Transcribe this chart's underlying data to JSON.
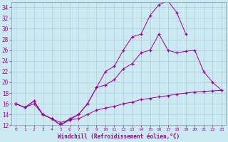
{
  "xlabel": "Windchill (Refroidissement éolien,°C)",
  "background_color": "#cce8f0",
  "line_color": "#990099",
  "grid_color": "#aaccdd",
  "xlim": [
    -0.5,
    23.5
  ],
  "ylim": [
    12,
    35
  ],
  "xticks": [
    0,
    1,
    2,
    3,
    4,
    5,
    6,
    7,
    8,
    9,
    10,
    11,
    12,
    13,
    14,
    15,
    16,
    17,
    18,
    19,
    20,
    21,
    22,
    23
  ],
  "yticks": [
    12,
    14,
    16,
    18,
    20,
    22,
    24,
    26,
    28,
    30,
    32,
    34
  ],
  "line1_x": [
    0,
    1,
    2,
    3,
    4,
    5,
    6,
    7,
    8,
    9,
    10,
    11,
    12,
    13,
    14,
    15,
    16,
    17,
    18,
    19,
    20,
    21,
    22,
    23
  ],
  "line1_y": [
    16,
    15.3,
    16.5,
    14.0,
    13.2,
    12.0,
    13.2,
    14.0,
    16.0,
    19.0,
    22.0,
    23.0,
    26.0,
    28.5,
    29.0,
    32.5,
    34.5,
    35.2,
    33.0,
    29.0,
    null,
    null,
    null,
    null
  ],
  "line2_x": [
    0,
    1,
    2,
    3,
    4,
    5,
    6,
    7,
    8,
    9,
    10,
    11,
    12,
    13,
    14,
    15,
    16,
    17,
    18,
    19,
    20,
    21,
    22,
    23
  ],
  "line2_y": [
    16,
    15.3,
    16.5,
    14.0,
    13.2,
    12.0,
    13.0,
    14.0,
    16.0,
    19.0,
    19.5,
    20.5,
    22.5,
    23.5,
    25.5,
    26.0,
    29.0,
    26.0,
    25.5,
    25.8,
    26.0,
    22.0,
    20.0,
    18.5
  ],
  "line3_x": [
    0,
    1,
    2,
    3,
    4,
    5,
    6,
    7,
    8,
    9,
    10,
    11,
    12,
    13,
    14,
    15,
    16,
    17,
    18,
    19,
    20,
    21,
    22,
    23
  ],
  "line3_y": [
    16,
    15.3,
    16.0,
    14.0,
    13.2,
    12.5,
    13.0,
    13.2,
    14.0,
    14.8,
    15.2,
    15.5,
    16.0,
    16.3,
    16.8,
    17.0,
    17.3,
    17.5,
    17.8,
    18.0,
    18.2,
    18.3,
    18.4,
    18.5
  ]
}
